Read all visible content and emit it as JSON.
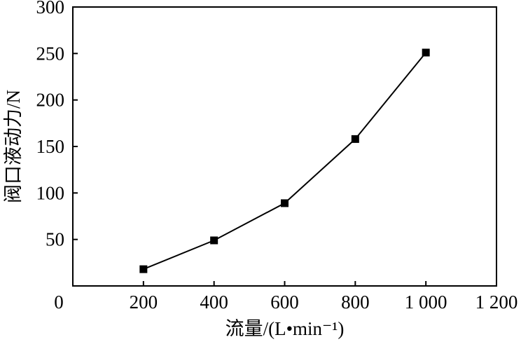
{
  "chart_data": {
    "type": "line",
    "xlabel": "流量/(L•min⁻¹)",
    "ylabel": "阀口液动力/N",
    "xlim": [
      0,
      1200
    ],
    "ylim": [
      0,
      300
    ],
    "x_ticks": [
      0,
      200,
      400,
      600,
      800,
      1000,
      1200
    ],
    "x_tick_labels": [
      "0",
      "200",
      "400",
      "600",
      "800",
      "1 000",
      "1 200"
    ],
    "y_ticks": [
      50,
      100,
      150,
      200,
      250,
      300
    ],
    "y_tick_labels": [
      "50",
      "100",
      "150",
      "200",
      "250",
      "300"
    ],
    "grid": false,
    "marker": "square",
    "series": [
      {
        "x": [
          200,
          400,
          600,
          800,
          1000
        ],
        "values": [
          18,
          49,
          89,
          158,
          251
        ]
      }
    ],
    "colors": {
      "line": "#000000",
      "marker": "#000000",
      "axis": "#000000"
    }
  }
}
